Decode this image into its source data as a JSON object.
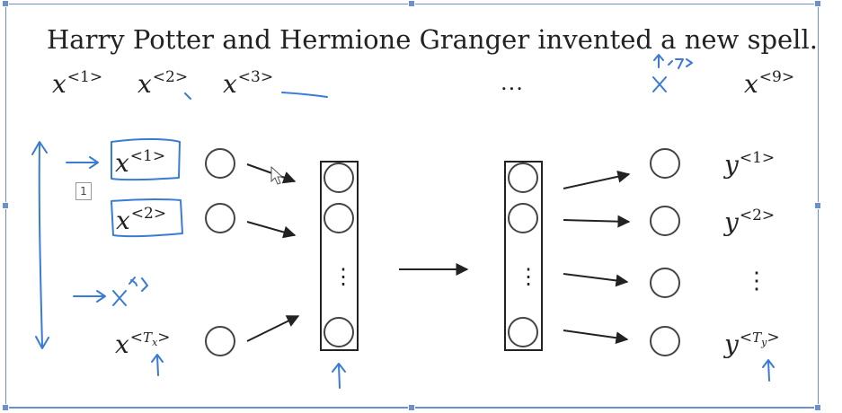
{
  "sentence": "Harry Potter and Hermione Granger invented a new spell.",
  "input_tokens": [
    {
      "base": "x",
      "sup": "<1>"
    },
    {
      "base": "x",
      "sup": "<2>"
    },
    {
      "base": "x",
      "sup": "<3>"
    },
    {
      "base": "x",
      "sup": "<9>"
    }
  ],
  "ellipsis": "...",
  "inputs": [
    {
      "base": "x",
      "sup": "<1>"
    },
    {
      "base": "x",
      "sup": "<2>"
    },
    {
      "base": "x",
      "sup_open": "<",
      "sup_var": "T",
      "sup_sub": "x",
      "sup_close": ">"
    }
  ],
  "outputs": [
    {
      "base": "y",
      "sup": "<1>"
    },
    {
      "base": "y",
      "sup": "<2>"
    },
    {
      "base": "y",
      "sup_open": "<",
      "sup_var": "T",
      "sup_sub": "y",
      "sup_close": ">"
    }
  ],
  "vertical_dots": "⋮",
  "slide_number": "1",
  "annotation_color": "#3a7bd5"
}
